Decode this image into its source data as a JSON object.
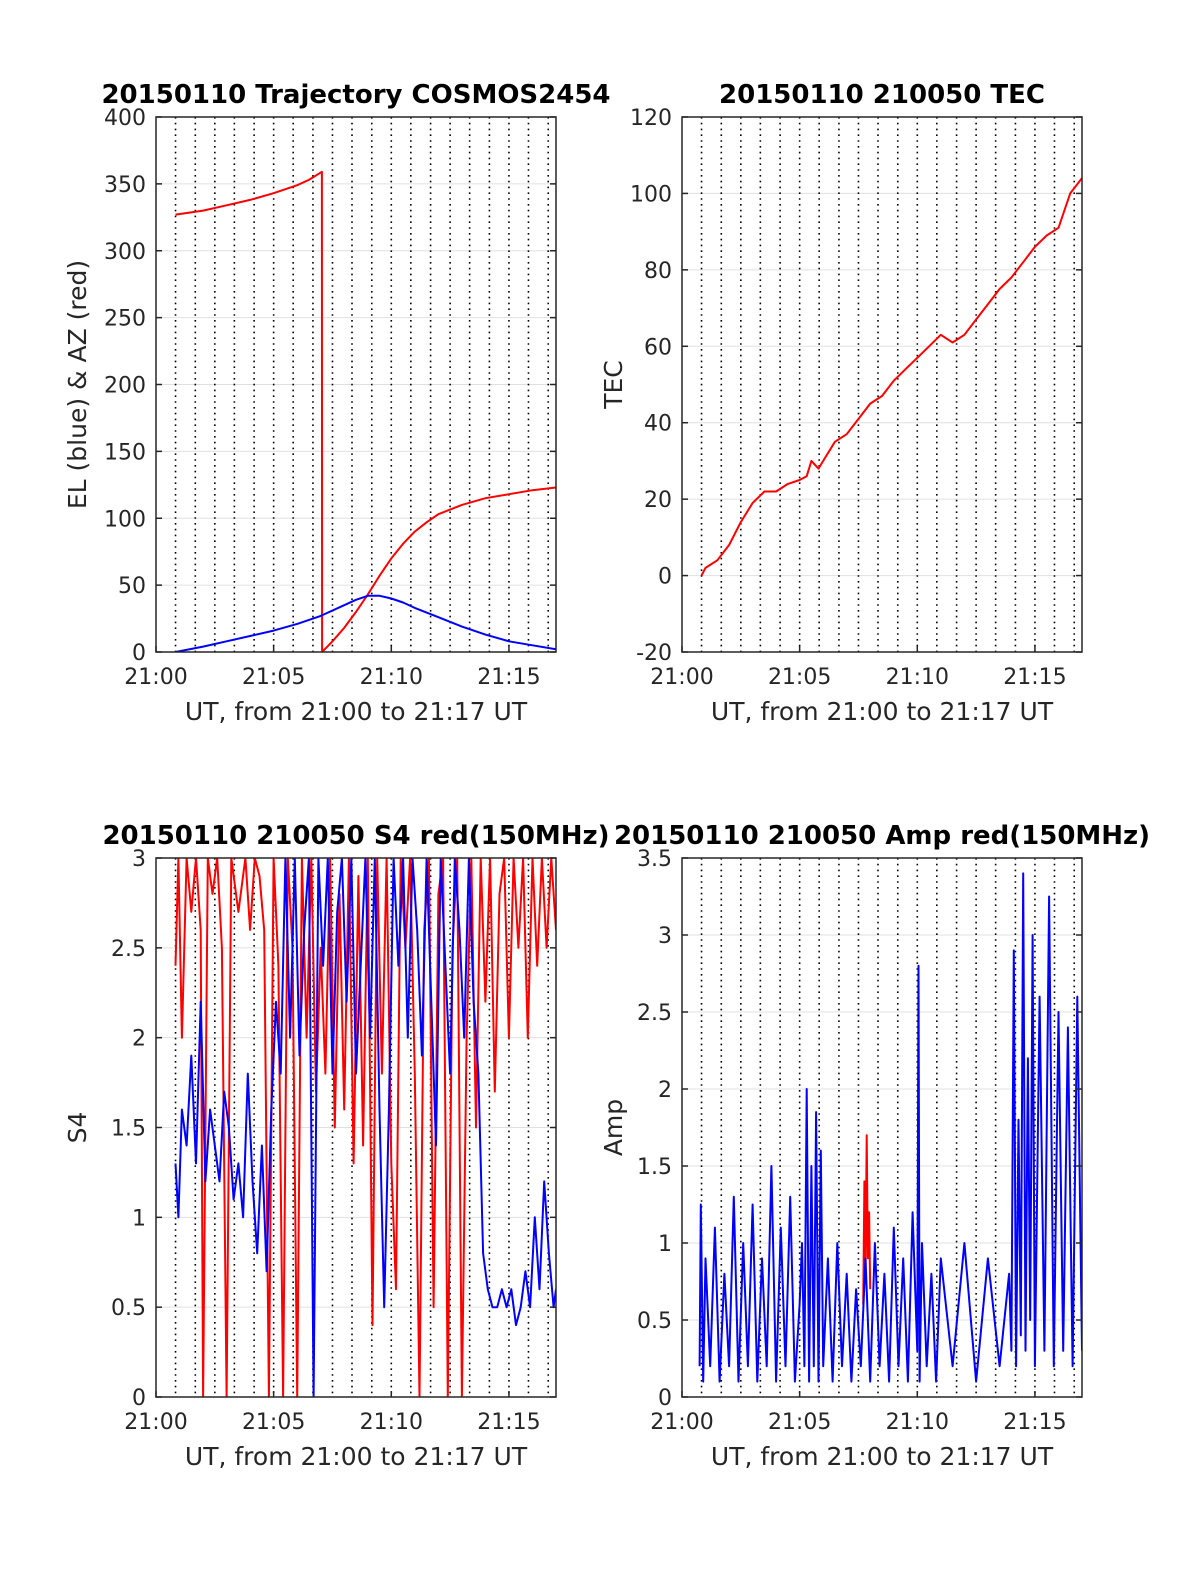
{
  "figure": {
    "colors": {
      "red": "#ff0000",
      "blue": "#0000ff",
      "axis": "#262626",
      "vgrid": "#000000",
      "hgrid": "#e0e0e0"
    }
  },
  "chart_data": [
    {
      "type": "line",
      "title": "20150110 Trajectory COSMOS2454",
      "xlabel": "UT, from 21:00 to 21:17 UT",
      "ylabel": "EL (blue) & AZ (red)",
      "xlim": [
        0,
        17
      ],
      "ylim": [
        0,
        400
      ],
      "xticks": [
        0,
        5,
        10,
        15
      ],
      "xtick_labels": [
        "21:00",
        "21:05",
        "21:10",
        "21:15"
      ],
      "yticks": [
        0,
        50,
        100,
        150,
        200,
        250,
        300,
        350,
        400
      ],
      "ytick_labels": [
        "0",
        "50",
        "100",
        "150",
        "200",
        "250",
        "300",
        "350",
        "400"
      ],
      "vgrid": [
        0.83,
        1.67,
        2.5,
        3.33,
        4.17,
        5,
        5.83,
        6.67,
        7.5,
        8.33,
        9.17,
        10,
        10.83,
        11.67,
        12.5,
        13.33,
        14.17,
        15,
        15.83,
        16.67
      ],
      "grid": true,
      "series": [
        {
          "color": "red",
          "x": [
            0.83,
            2,
            3,
            4,
            5,
            6,
            6.5,
            7.05,
            7.06,
            7.5,
            8,
            8.5,
            9,
            9.5,
            10,
            10.5,
            11,
            11.5,
            12,
            13,
            14,
            15,
            16,
            17
          ],
          "y": [
            327,
            330,
            334,
            338,
            343,
            349,
            353,
            359,
            0,
            8,
            18,
            30,
            43,
            57,
            70,
            81,
            90,
            97,
            103,
            110,
            115,
            118,
            121,
            123
          ]
        },
        {
          "color": "blue",
          "x": [
            0.83,
            2,
            3,
            4,
            5,
            6,
            7,
            8,
            8.5,
            9,
            9.5,
            10,
            10.5,
            11,
            12,
            13,
            14,
            15,
            16,
            17
          ],
          "y": [
            0,
            4,
            8,
            12,
            16,
            21,
            27,
            35,
            39,
            42,
            42,
            40,
            37,
            33,
            26,
            19,
            13,
            8,
            5,
            2
          ]
        }
      ]
    },
    {
      "type": "line",
      "title": "20150110 210050 TEC",
      "xlabel": "UT, from 21:00 to 21:17 UT",
      "ylabel": "TEC",
      "xlim": [
        0,
        17
      ],
      "ylim": [
        -20,
        120
      ],
      "xticks": [
        0,
        5,
        10,
        15
      ],
      "xtick_labels": [
        "21:00",
        "21:05",
        "21:10",
        "21:15"
      ],
      "yticks": [
        -20,
        0,
        20,
        40,
        60,
        80,
        100,
        120
      ],
      "ytick_labels": [
        "-20",
        "0",
        "20",
        "40",
        "60",
        "80",
        "100",
        "120"
      ],
      "vgrid": [
        0.83,
        1.67,
        2.5,
        3.33,
        4.17,
        5,
        5.83,
        6.67,
        7.5,
        8.33,
        9.17,
        10,
        10.83,
        11.67,
        12.5,
        13.33,
        14.17,
        15,
        15.83,
        16.67
      ],
      "grid": true,
      "series": [
        {
          "color": "red",
          "x": [
            0.83,
            1,
            1.5,
            2,
            2.5,
            3,
            3.5,
            4,
            4.5,
            5,
            5.3,
            5.5,
            5.8,
            6,
            6.5,
            7,
            7.5,
            8,
            8.5,
            9,
            9.5,
            10,
            10.5,
            11,
            11.5,
            12,
            12.5,
            13,
            13.5,
            14,
            14.5,
            15,
            15.5,
            16,
            16.5,
            17
          ],
          "y": [
            0,
            2,
            4,
            8,
            14,
            19,
            22,
            22,
            24,
            25,
            26,
            30,
            28,
            30,
            35,
            37,
            41,
            45,
            47,
            51,
            54,
            57,
            60,
            63,
            61,
            63,
            67,
            71,
            75,
            78,
            82,
            86,
            89,
            91,
            100,
            104
          ]
        }
      ]
    },
    {
      "type": "line",
      "title": "20150110 210050 S4 red(150MHz)",
      "xlabel": "UT, from 21:00 to 21:17 UT",
      "ylabel": "S4",
      "xlim": [
        0,
        17
      ],
      "ylim": [
        0,
        3
      ],
      "xticks": [
        0,
        5,
        10,
        15
      ],
      "xtick_labels": [
        "21:00",
        "21:05",
        "21:10",
        "21:15"
      ],
      "yticks": [
        0,
        0.5,
        1,
        1.5,
        2,
        2.5,
        3
      ],
      "ytick_labels": [
        "0",
        "0.5",
        "1",
        "1.5",
        "2",
        "2.5",
        "3"
      ],
      "vgrid": [
        0.83,
        1.67,
        2.5,
        3.33,
        4.17,
        5,
        5.83,
        6.67,
        7.5,
        8.33,
        9.17,
        10,
        10.83,
        11.67,
        12.5,
        13.33,
        14.17,
        15,
        15.83,
        16.67
      ],
      "grid": true,
      "series": [
        {
          "color": "red",
          "x": [
            0.83,
            0.95,
            1.1,
            1.3,
            1.5,
            1.7,
            1.9,
            2.0,
            2.2,
            2.4,
            2.6,
            2.8,
            3.0,
            3.2,
            3.5,
            3.8,
            4.0,
            4.2,
            4.4,
            4.6,
            4.8,
            5.0,
            5.2,
            5.4,
            5.6,
            5.8,
            6.0,
            6.2,
            6.4,
            6.6,
            6.8,
            7.0,
            7.2,
            7.4,
            7.6,
            7.8,
            8.0,
            8.2,
            8.4,
            8.6,
            8.8,
            9.0,
            9.2,
            9.4,
            9.6,
            9.8,
            10.0,
            10.2,
            10.4,
            10.6,
            10.8,
            11.0,
            11.2,
            11.4,
            11.6,
            11.8,
            12.0,
            12.2,
            12.4,
            12.6,
            12.8,
            13.0,
            13.2,
            13.4,
            13.6,
            13.8,
            14.0,
            14.2,
            14.4,
            14.6,
            14.8,
            15.0,
            15.2,
            15.4,
            15.6,
            15.8,
            16.0,
            16.2,
            16.4,
            16.6,
            16.8,
            17.0
          ],
          "y": [
            2.4,
            3.0,
            2.0,
            3.0,
            2.7,
            3.0,
            2.6,
            0,
            3.0,
            2.8,
            3.0,
            2.5,
            0,
            3.0,
            2.7,
            3.0,
            2.6,
            3.0,
            2.9,
            2.6,
            0,
            3.0,
            2.4,
            0,
            3.0,
            2.5,
            0,
            3.0,
            2.0,
            3.0,
            1.7,
            2.5,
            1.8,
            3.0,
            1.5,
            2.8,
            1.6,
            3.0,
            1.3,
            2.9,
            1.4,
            3.0,
            0.4,
            3.0,
            1.8,
            3.0,
            1.3,
            0.6,
            3.0,
            2.5,
            3.0,
            1.8,
            0,
            2.6,
            3.0,
            0.5,
            2.8,
            3.0,
            0,
            2.5,
            3.0,
            0,
            2.0,
            3.0,
            1.5,
            3.0,
            2.2,
            3.0,
            1.7,
            2.8,
            3.0,
            2.0,
            3.0,
            2.5,
            3.0,
            2.0,
            3.0,
            2.4,
            3.0,
            2.5,
            3.0,
            2.6
          ]
        },
        {
          "color": "blue",
          "x": [
            0.83,
            0.95,
            1.1,
            1.3,
            1.5,
            1.7,
            1.9,
            2.1,
            2.3,
            2.5,
            2.7,
            2.9,
            3.1,
            3.3,
            3.5,
            3.7,
            3.9,
            4.1,
            4.3,
            4.5,
            4.7,
            4.9,
            5.1,
            5.3,
            5.5,
            5.7,
            5.9,
            6.1,
            6.3,
            6.5,
            6.7,
            6.9,
            7.1,
            7.3,
            7.5,
            7.7,
            7.9,
            8.1,
            8.3,
            8.5,
            8.7,
            8.9,
            9.1,
            9.3,
            9.5,
            9.7,
            9.9,
            10.1,
            10.3,
            10.5,
            10.7,
            10.9,
            11.1,
            11.3,
            11.5,
            11.7,
            11.9,
            12.1,
            12.3,
            12.5,
            12.7,
            12.9,
            13.1,
            13.3,
            13.5,
            13.7,
            13.9,
            14.1,
            14.3,
            14.5,
            14.7,
            14.9,
            15.1,
            15.3,
            15.5,
            15.7,
            15.9,
            16.1,
            16.3,
            16.5,
            16.7,
            16.9,
            17.0
          ],
          "y": [
            1.3,
            1.0,
            1.6,
            1.4,
            1.9,
            1.3,
            2.2,
            1.2,
            1.6,
            1.4,
            1.2,
            1.7,
            1.5,
            1.1,
            1.3,
            1.0,
            1.8,
            1.2,
            0.8,
            1.4,
            0.7,
            1.6,
            2.2,
            1.8,
            3.0,
            2.0,
            3.0,
            1.9,
            2.6,
            3.0,
            0,
            3.0,
            2.4,
            3.0,
            1.8,
            2.7,
            3.0,
            2.2,
            3.0,
            1.8,
            2.4,
            3.0,
            2.0,
            3.0,
            1.6,
            0.5,
            1.6,
            3.0,
            2.4,
            3.0,
            2.0,
            3.0,
            2.6,
            1.9,
            3.0,
            2.2,
            1.4,
            3.0,
            2.4,
            1.8,
            3.0,
            2.6,
            2.0,
            3.0,
            2.2,
            1.8,
            0.8,
            0.6,
            0.5,
            0.5,
            0.6,
            0.5,
            0.6,
            0.4,
            0.5,
            0.7,
            0.5,
            1.0,
            0.6,
            1.2,
            0.8,
            0.5,
            0.6
          ]
        }
      ]
    },
    {
      "type": "line",
      "title": "20150110 210050 Amp red(150MHz)",
      "xlabel": "UT, from 21:00 to 21:17 UT",
      "ylabel": "Amp",
      "xlim": [
        0,
        17
      ],
      "ylim": [
        0,
        3.5
      ],
      "xticks": [
        0,
        5,
        10,
        15
      ],
      "xtick_labels": [
        "21:00",
        "21:05",
        "21:10",
        "21:15"
      ],
      "yticks": [
        0,
        0.5,
        1,
        1.5,
        2,
        2.5,
        3,
        3.5
      ],
      "ytick_labels": [
        "0",
        "0.5",
        "1",
        "1.5",
        "2",
        "2.5",
        "3",
        "3.5"
      ],
      "vgrid": [
        0.83,
        1.67,
        2.5,
        3.33,
        4.17,
        5,
        5.83,
        6.67,
        7.5,
        8.33,
        9.17,
        10,
        10.83,
        11.67,
        12.5,
        13.33,
        14.17,
        15,
        15.83,
        16.67
      ],
      "grid": true,
      "series": [
        {
          "color": "red",
          "x": [
            7.7,
            7.75,
            7.8,
            7.85,
            7.9,
            7.95,
            8.0
          ],
          "y": [
            0.6,
            1.4,
            0.8,
            1.7,
            0.9,
            1.2,
            0.7
          ]
        },
        {
          "color": "blue",
          "x": [
            0.75,
            0.8,
            0.9,
            1.0,
            1.2,
            1.4,
            1.6,
            1.8,
            2.0,
            2.2,
            2.4,
            2.6,
            2.8,
            3.0,
            3.2,
            3.4,
            3.6,
            3.8,
            4.0,
            4.2,
            4.4,
            4.6,
            4.8,
            5.0,
            5.1,
            5.2,
            5.3,
            5.4,
            5.5,
            5.6,
            5.7,
            5.8,
            5.9,
            6.0,
            6.2,
            6.4,
            6.6,
            6.8,
            7.0,
            7.2,
            7.4,
            7.6,
            7.8,
            8.0,
            8.2,
            8.4,
            8.6,
            8.8,
            9.0,
            9.2,
            9.4,
            9.6,
            9.8,
            10.0,
            10.05,
            10.1,
            10.2,
            10.4,
            10.6,
            10.8,
            11.0,
            11.5,
            12.0,
            12.5,
            13.0,
            13.5,
            13.9,
            14.0,
            14.1,
            14.2,
            14.3,
            14.4,
            14.5,
            14.6,
            14.7,
            14.8,
            14.9,
            15.0,
            15.2,
            15.4,
            15.6,
            15.8,
            16.0,
            16.2,
            16.4,
            16.6,
            16.8,
            17.0
          ],
          "y": [
            0.2,
            1.25,
            0.1,
            0.9,
            0.2,
            1.1,
            0.1,
            0.8,
            0.2,
            1.3,
            0.1,
            1.0,
            0.2,
            1.25,
            0.1,
            0.9,
            0.2,
            1.5,
            0.1,
            1.1,
            0.2,
            1.3,
            0.1,
            0.6,
            1.0,
            0.2,
            2.0,
            0.1,
            1.5,
            0.2,
            1.85,
            0.1,
            1.6,
            0.2,
            0.9,
            0.1,
            1.0,
            0.2,
            0.8,
            0.1,
            0.7,
            0.2,
            0.9,
            0.1,
            1.0,
            0.2,
            0.8,
            0.1,
            1.1,
            0.2,
            0.9,
            0.1,
            1.2,
            0.3,
            2.8,
            0.1,
            1.0,
            0.2,
            0.8,
            0.1,
            0.9,
            0.2,
            1.0,
            0.1,
            0.9,
            0.2,
            0.8,
            0.3,
            2.9,
            0.2,
            1.8,
            0.4,
            3.4,
            0.3,
            2.2,
            0.5,
            3.0,
            0.2,
            2.6,
            0.3,
            3.25,
            0.2,
            2.5,
            0.3,
            2.4,
            0.2,
            2.6,
            0.3
          ]
        }
      ]
    }
  ]
}
